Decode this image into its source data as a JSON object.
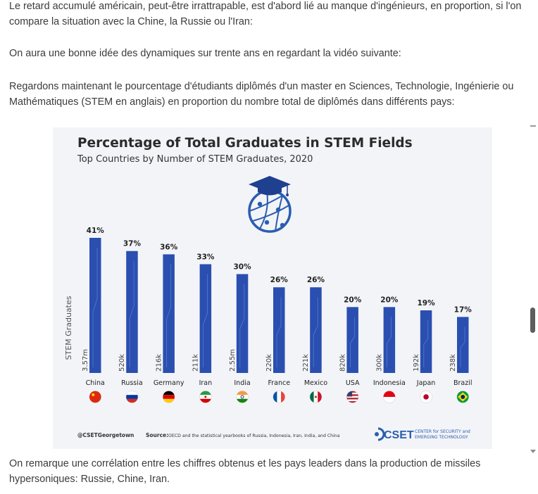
{
  "article": {
    "p1": "Le retard accumulé américain, peut-être irrattrapable, est d'abord lié au manque d'ingénieurs, en proportion, si l'on compare la situation avec la Chine, la Russie ou l'Iran:",
    "p2": "On aura une bonne idée des dynamiques sur trente ans en regardant la vidéo suivante:",
    "p3": "Regardons maintenant le pourcentage d'étudiants diplômés d'un master en Sciences, Technologie, Ingénierie ou Mathématiques (STEM en anglais) en proportion du nombre total de diplômés dans différents pays:",
    "p4": "On remarque une corrélation entre les chiffres obtenus et les pays leaders dans la production de missiles hypersoniques: Russie, Chine, Iran."
  },
  "chart_data": {
    "type": "bar",
    "title": "Percentage of Total Graduates in STEM Fields",
    "subtitle": "Top Countries by Number of STEM Graduates, 2020",
    "ylabel": "STEM Graduates",
    "categories": [
      "China",
      "Russia",
      "Germany",
      "Iran",
      "India",
      "France",
      "Mexico",
      "USA",
      "Indonesia",
      "Japan",
      "Brazil"
    ],
    "values": [
      41,
      37,
      36,
      33,
      30,
      26,
      26,
      20,
      20,
      19,
      17
    ],
    "value_labels": [
      "41%",
      "37%",
      "36%",
      "33%",
      "30%",
      "26%",
      "26%",
      "20%",
      "20%",
      "19%",
      "17%"
    ],
    "graduate_counts": [
      "3.57m",
      "520k",
      "216k",
      "211k",
      "2.55m",
      "220k",
      "221k",
      "820k",
      "300k",
      "192k",
      "238k"
    ],
    "ylim": [
      0,
      41
    ],
    "grid": false,
    "bar_color": "#2a4fb0",
    "footer_handle": "@CSETGeorgetown",
    "footer_source_label": "Source:",
    "footer_source_text": "OECD and the statistical yearbooks of Russia, Indonesia, Iran, India, and China",
    "logo_text": "CSET",
    "logo_tag_line1": "CENTER for SECURITY and",
    "logo_tag_line2": "EMERGING TECHNOLOGY"
  }
}
